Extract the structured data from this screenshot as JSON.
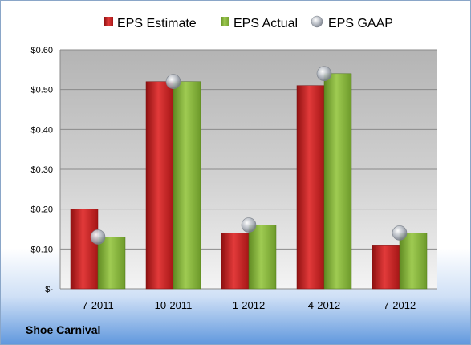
{
  "colors": {
    "estimate": "#cc1f1f",
    "actual": "#86b33c",
    "gaap": "#b9bec6"
  },
  "chart_data": {
    "type": "bar",
    "title": "Shoe Carnival",
    "categories": [
      "7-2011",
      "10-2011",
      "1-2012",
      "4-2012",
      "7-2012"
    ],
    "series": [
      {
        "name": "EPS Estimate",
        "kind": "bar",
        "values": [
          0.2,
          0.52,
          0.14,
          0.51,
          0.11
        ]
      },
      {
        "name": "EPS Actual",
        "kind": "bar",
        "values": [
          0.13,
          0.52,
          0.16,
          0.54,
          0.14
        ]
      },
      {
        "name": "EPS GAAP",
        "kind": "marker",
        "values": [
          0.13,
          0.52,
          0.16,
          0.54,
          0.14
        ]
      }
    ],
    "ylim": [
      0,
      0.6
    ],
    "yticks": [
      0,
      0.1,
      0.2,
      0.3,
      0.4,
      0.5,
      0.6
    ],
    "ytick_labels": [
      "$-",
      "$0.10",
      "$0.20",
      "$0.30",
      "$0.40",
      "$0.50",
      "$0.60"
    ],
    "legend_position": "top",
    "grid": true
  }
}
